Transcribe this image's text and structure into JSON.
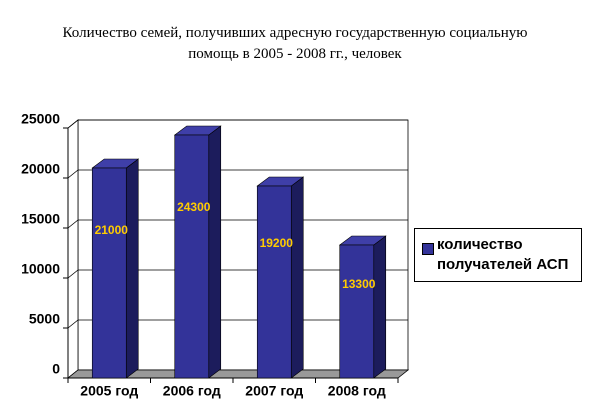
{
  "chart_data": {
    "type": "bar3d",
    "title": [
      "Количество семей, получивших адресную государственную социальную",
      "помощь в  2005 - 2008 гг., человек"
    ],
    "categories": [
      "2005 год",
      "2006 год",
      "2007 год",
      "2008 год"
    ],
    "series": [
      {
        "name": "количество получателей АСП",
        "color": "#333399",
        "values": [
          21000,
          24300,
          19200,
          13300
        ]
      }
    ],
    "ylim": [
      0,
      25000
    ],
    "yticks": [
      0,
      5000,
      10000,
      15000,
      20000,
      25000
    ],
    "grid": true,
    "legend": "right"
  }
}
